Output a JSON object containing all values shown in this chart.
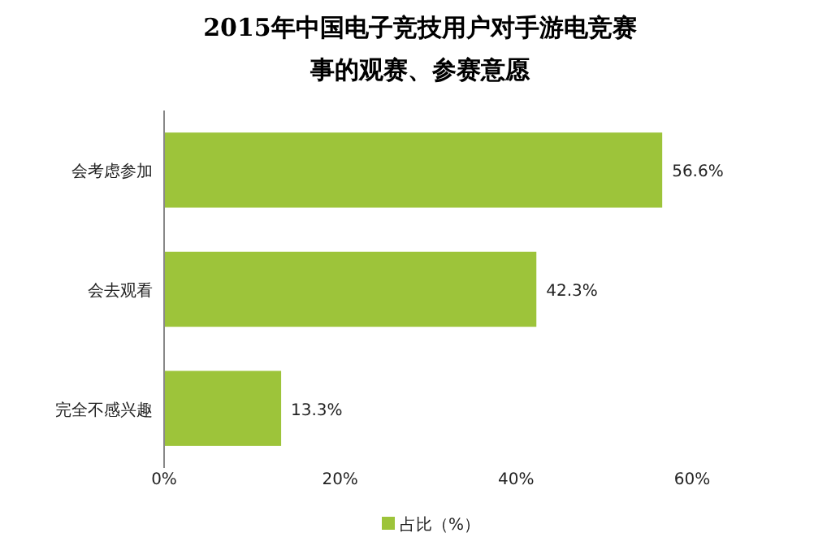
{
  "chart_data": {
    "type": "bar",
    "orientation": "horizontal",
    "title": "2015年中国电子竞技用户对手游电竞赛事的观赛、参赛意愿",
    "categories": [
      "会考虑参加",
      "会去观看",
      "完全不感兴趣"
    ],
    "series": [
      {
        "name": "占比（%）",
        "color": "#9dc43a",
        "values": [
          56.6,
          42.3,
          13.3
        ],
        "value_labels": [
          "56.6%",
          "42.3%",
          "13.3%"
        ]
      }
    ],
    "xlim": [
      0,
      60
    ],
    "xticks": [
      {
        "value": 0,
        "label": "0%"
      },
      {
        "value": 20,
        "label": "20%"
      },
      {
        "value": 40,
        "label": "40%"
      },
      {
        "value": 60,
        "label": "60%"
      }
    ],
    "legend": "bottom"
  }
}
